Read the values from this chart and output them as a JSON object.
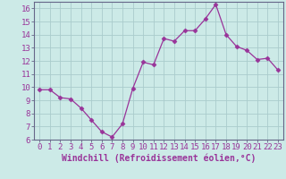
{
  "x": [
    0,
    1,
    2,
    3,
    4,
    5,
    6,
    7,
    8,
    9,
    10,
    11,
    12,
    13,
    14,
    15,
    16,
    17,
    18,
    19,
    20,
    21,
    22,
    23
  ],
  "y": [
    9.8,
    9.8,
    9.2,
    9.1,
    8.4,
    7.5,
    6.6,
    6.2,
    7.2,
    9.9,
    11.9,
    11.7,
    13.7,
    13.5,
    14.3,
    14.3,
    15.2,
    16.3,
    14.0,
    13.1,
    12.8,
    12.1,
    12.2,
    11.3
  ],
  "xlabel": "Windchill (Refroidissement éolien,°C)",
  "ylim": [
    6,
    16.5
  ],
  "xlim": [
    -0.5,
    23.5
  ],
  "yticks": [
    6,
    7,
    8,
    9,
    10,
    11,
    12,
    13,
    14,
    15,
    16
  ],
  "xticks": [
    0,
    1,
    2,
    3,
    4,
    5,
    6,
    7,
    8,
    9,
    10,
    11,
    12,
    13,
    14,
    15,
    16,
    17,
    18,
    19,
    20,
    21,
    22,
    23
  ],
  "line_color": "#993399",
  "marker": "D",
  "marker_size": 2.5,
  "bg_color": "#cceae7",
  "grid_color": "#aacccc",
  "tick_label_color": "#993399",
  "xlabel_color": "#993399",
  "xlabel_fontsize": 7,
  "tick_fontsize": 6.5,
  "spine_color": "#666688"
}
